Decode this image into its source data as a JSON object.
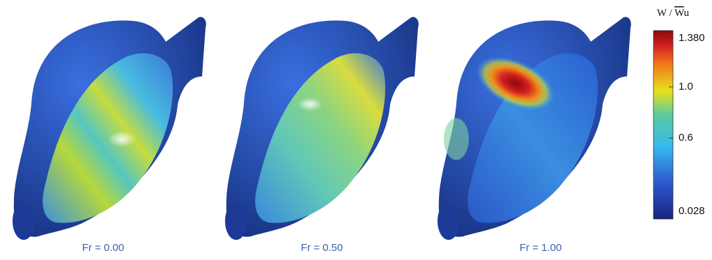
{
  "panels": [
    {
      "caption": "Fr = 0.00"
    },
    {
      "caption": "Fr = 0.50"
    },
    {
      "caption": "Fr = 1.00"
    }
  ],
  "colorbar": {
    "label_parts": [
      "W / ",
      "W",
      "u"
    ],
    "range": [
      0.028,
      1.38
    ],
    "ticks": [
      {
        "value": 1.38,
        "label": "1.380"
      },
      {
        "value": 1.0,
        "label": "1.0"
      },
      0.6,
      0.028
    ]
  }
}
